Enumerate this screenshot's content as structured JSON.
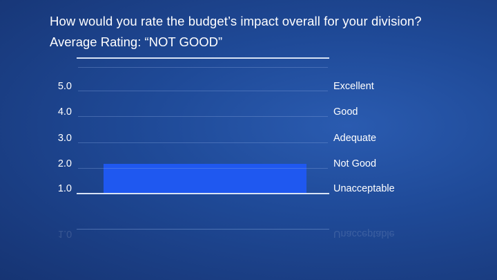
{
  "header": {
    "title": "How would you rate the budget’s impact overall for your division?",
    "subtitle": "Average Rating: “NOT GOOD”"
  },
  "axis": {
    "yticks": [
      "5.0",
      "4.0",
      "3.0",
      "2.0",
      "1.0"
    ],
    "right_labels": [
      "Excellent",
      "Good",
      "Adequate",
      "Not Good",
      "Unacceptable"
    ]
  },
  "reflection": {
    "ytick": "1.0",
    "right_label": "Unacceptable"
  },
  "colors": {
    "bar": "#1f58f0",
    "background": "#1f4a98",
    "axis_line": "#d8e3f5"
  },
  "chart_data": {
    "type": "bar",
    "title": "How would you rate the budget’s impact overall for your division?",
    "subtitle": "Average Rating: “NOT GOOD”",
    "categories": [
      "Average Rating"
    ],
    "values": [
      2.15
    ],
    "xlabel": "",
    "ylabel": "",
    "ylim": [
      1.0,
      5.0
    ],
    "yticks": [
      1.0,
      2.0,
      3.0,
      4.0,
      5.0
    ],
    "secondary_ytick_labels": [
      "Unacceptable",
      "Not Good",
      "Adequate",
      "Good",
      "Excellent"
    ],
    "grid": true,
    "legend": null
  }
}
